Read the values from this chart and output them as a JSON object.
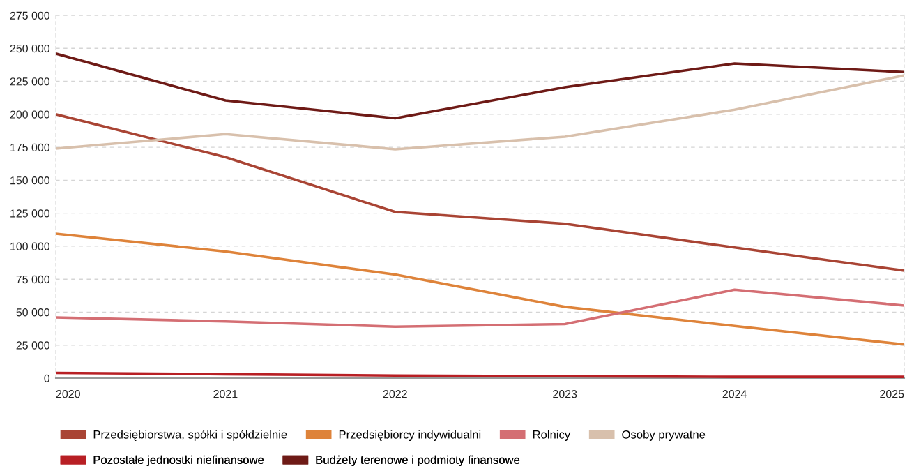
{
  "chart_data": {
    "type": "line",
    "x": [
      2020,
      2021,
      2022,
      2023,
      2024,
      2025
    ],
    "xlim": [
      2020,
      2025
    ],
    "xticks": [
      2020,
      2021,
      2022,
      2023,
      2024,
      2025
    ],
    "ylim": [
      0,
      275000
    ],
    "yticks": [
      {
        "value": 0,
        "label": "0"
      },
      {
        "value": 25000,
        "label": "25 000"
      },
      {
        "value": 50000,
        "label": "50 000"
      },
      {
        "value": 75000,
        "label": "75 000"
      },
      {
        "value": 100000,
        "label": "100 000"
      },
      {
        "value": 125000,
        "label": "125 000"
      },
      {
        "value": 150000,
        "label": "150 000"
      },
      {
        "value": 175000,
        "label": "175 000"
      },
      {
        "value": 200000,
        "label": "200 000"
      },
      {
        "value": 225000,
        "label": "225 000"
      },
      {
        "value": 250000,
        "label": "250 000"
      },
      {
        "value": 275000,
        "label": "275 000"
      }
    ],
    "grid": "y",
    "legend": "bottom",
    "marker": "none",
    "line_style": "solid",
    "series": [
      {
        "name": "Przedsiębiorstwa, spółki i spółdzielnie",
        "color": "#a94434",
        "values": [
          200000,
          167500,
          126000,
          117000,
          99000,
          81500
        ]
      },
      {
        "name": "Przedsiębiorcy indywidualni",
        "color": "#de833a",
        "values": [
          109500,
          96000,
          78500,
          54000,
          39500,
          25500
        ]
      },
      {
        "name": "Rolnicy",
        "color": "#d46e73",
        "values": [
          46000,
          43000,
          39000,
          41000,
          67000,
          55000
        ]
      },
      {
        "name": "Osoby prywatne",
        "color": "#d8c0ac",
        "values": [
          174000,
          185000,
          173500,
          183000,
          203500,
          229500
        ]
      },
      {
        "name": "Pozostałe jednostki niefinansowe",
        "color": "#b81f24",
        "values": [
          4000,
          3000,
          2000,
          1500,
          1000,
          1000
        ]
      },
      {
        "name": "Budżety terenowe i podmioty finansowe",
        "color": "#6e1a16",
        "values": [
          246000,
          210500,
          197000,
          220500,
          238500,
          232000
        ]
      }
    ]
  }
}
